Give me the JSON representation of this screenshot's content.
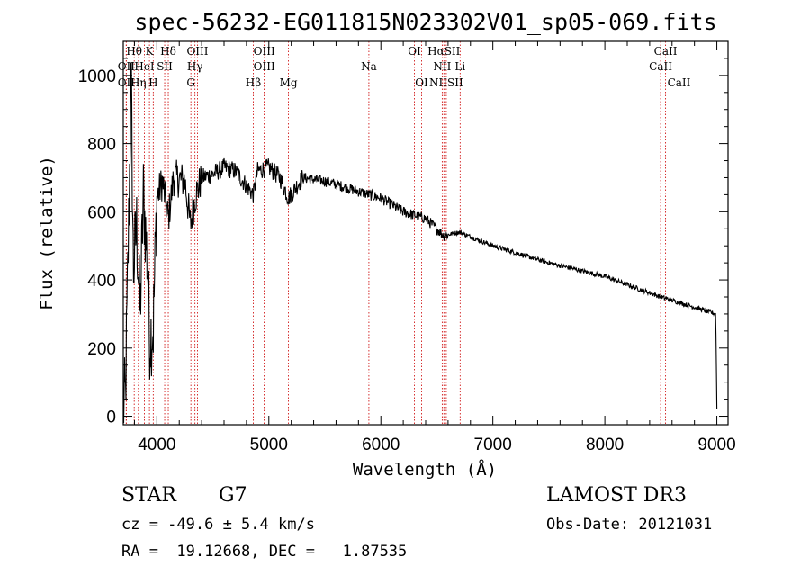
{
  "chart_data": {
    "type": "line",
    "title": "spec-56232-EG011815N023302V01_sp05-069.fits",
    "xlabel": "Wavelength (Å)",
    "ylabel": "Flux (relative)",
    "xlim": [
      3700,
      9100
    ],
    "ylim": [
      -25,
      1100
    ],
    "xticks": [
      4000,
      5000,
      6000,
      7000,
      8000,
      9000
    ],
    "yticks": [
      0,
      200,
      400,
      600,
      800,
      1000
    ],
    "xtick_labels": [
      "4000",
      "5000",
      "6000",
      "7000",
      "8000",
      "9000"
    ],
    "ytick_labels": [
      "0",
      "200",
      "400",
      "600",
      "800",
      "1000"
    ],
    "spectrum_anchors": [
      {
        "x": 3700,
        "y": 20
      },
      {
        "x": 3720,
        "y": 60
      },
      {
        "x": 3750,
        "y": 600
      },
      {
        "x": 3770,
        "y": 1000
      },
      {
        "x": 3790,
        "y": 420
      },
      {
        "x": 3820,
        "y": 560
      },
      {
        "x": 3850,
        "y": 300
      },
      {
        "x": 3880,
        "y": 650
      },
      {
        "x": 3920,
        "y": 420
      },
      {
        "x": 3934,
        "y": 230
      },
      {
        "x": 3968,
        "y": 260
      },
      {
        "x": 4000,
        "y": 640
      },
      {
        "x": 4050,
        "y": 690
      },
      {
        "x": 4102,
        "y": 580
      },
      {
        "x": 4150,
        "y": 700
      },
      {
        "x": 4250,
        "y": 690
      },
      {
        "x": 4300,
        "y": 560
      },
      {
        "x": 4340,
        "y": 640
      },
      {
        "x": 4400,
        "y": 700
      },
      {
        "x": 4500,
        "y": 710
      },
      {
        "x": 4600,
        "y": 730
      },
      {
        "x": 4700,
        "y": 720
      },
      {
        "x": 4861,
        "y": 650
      },
      {
        "x": 4900,
        "y": 720
      },
      {
        "x": 5000,
        "y": 730
      },
      {
        "x": 5100,
        "y": 700
      },
      {
        "x": 5175,
        "y": 640
      },
      {
        "x": 5300,
        "y": 700
      },
      {
        "x": 5500,
        "y": 690
      },
      {
        "x": 5700,
        "y": 670
      },
      {
        "x": 5893,
        "y": 650
      },
      {
        "x": 6000,
        "y": 640
      },
      {
        "x": 6200,
        "y": 600
      },
      {
        "x": 6400,
        "y": 580
      },
      {
        "x": 6563,
        "y": 530
      },
      {
        "x": 6700,
        "y": 540
      },
      {
        "x": 7000,
        "y": 500
      },
      {
        "x": 7500,
        "y": 450
      },
      {
        "x": 8000,
        "y": 410
      },
      {
        "x": 8500,
        "y": 350
      },
      {
        "x": 8800,
        "y": 320
      },
      {
        "x": 8990,
        "y": 300
      },
      {
        "x": 9000,
        "y": 20
      }
    ],
    "spectral_lines": [
      {
        "label": "Hθ",
        "x": 3798,
        "row": 0
      },
      {
        "label": "K",
        "x": 3934,
        "row": 0
      },
      {
        "label": "Hδ",
        "x": 4102,
        "row": 0
      },
      {
        "label": "OIII",
        "x": 4363,
        "row": 0
      },
      {
        "label": "OIII",
        "x": 4959,
        "row": 0
      },
      {
        "label": "OI",
        "x": 6300,
        "row": 0
      },
      {
        "label": "HαSII",
        "x": 6563,
        "row": 0
      },
      {
        "label": "CaII",
        "x": 8542,
        "row": 0
      },
      {
        "label": "OII",
        "x": 3727,
        "row": 1
      },
      {
        "label": "HeI",
        "x": 3889,
        "row": 1
      },
      {
        "label": "SII",
        "x": 4070,
        "row": 1
      },
      {
        "label": "Hγ",
        "x": 4340,
        "row": 1
      },
      {
        "label": "OIII",
        "x": 4959,
        "row": 1
      },
      {
        "label": "Na",
        "x": 5893,
        "row": 1
      },
      {
        "label": "NII",
        "x": 6548,
        "row": 1
      },
      {
        "label": "Li",
        "x": 6708,
        "row": 1
      },
      {
        "label": "CaII",
        "x": 8498,
        "row": 1
      },
      {
        "label": "OII",
        "x": 3727,
        "row": 2
      },
      {
        "label": "Hη",
        "x": 3835,
        "row": 2
      },
      {
        "label": "H",
        "x": 3968,
        "row": 2
      },
      {
        "label": "G",
        "x": 4304,
        "row": 2
      },
      {
        "label": "Hβ",
        "x": 4861,
        "row": 2
      },
      {
        "label": "Mg",
        "x": 5175,
        "row": 2
      },
      {
        "label": "OI",
        "x": 6364,
        "row": 2
      },
      {
        "label": "NIISII",
        "x": 6584,
        "row": 2
      },
      {
        "label": "CaII",
        "x": 8662,
        "row": 2
      }
    ],
    "line_color": "#d11a1a",
    "data_color": "#000000"
  },
  "info": {
    "class": "STAR",
    "subclass": "G7",
    "survey": "LAMOST DR3",
    "cz": "cz = -49.6 ± 5.4 km/s",
    "obs_date": "Obs-Date: 20121031",
    "coords": "RA =  19.12668, DEC =   1.87535"
  }
}
